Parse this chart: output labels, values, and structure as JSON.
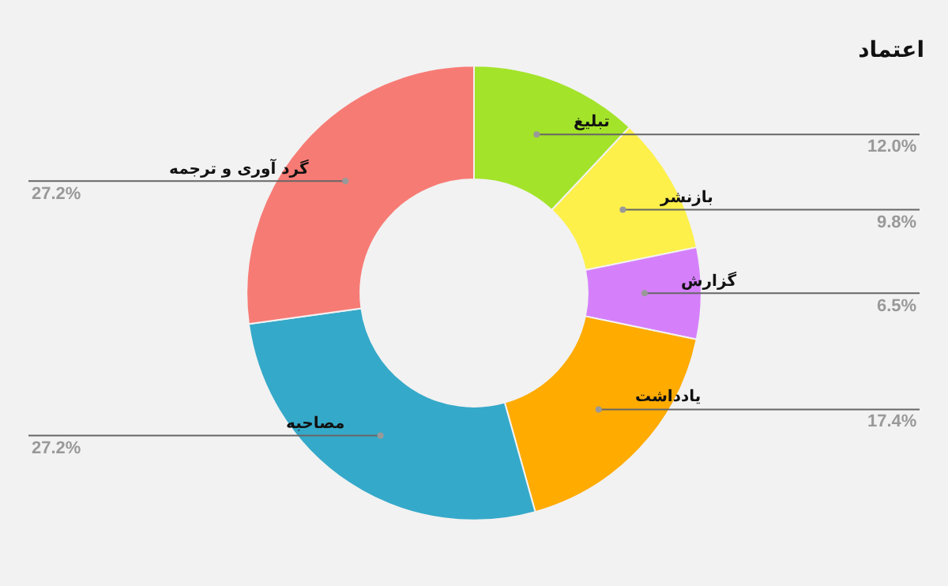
{
  "chart_data": {
    "type": "donut",
    "title": "اعتماد",
    "categories": [
      "تبلیغ",
      "بازنشر",
      "گزارش",
      "یادداشت",
      "مصاحبه",
      "گرد آوری و ترجمه"
    ],
    "values": [
      12.0,
      9.8,
      6.5,
      17.4,
      27.2,
      27.2
    ],
    "value_labels": [
      "12.0%",
      "9.8%",
      "6.5%",
      "17.4%",
      "27.2%",
      "27.2%"
    ],
    "colors": [
      "#a3e32a",
      "#fdf04a",
      "#d580fa",
      "#ffab00",
      "#35a9c9",
      "#f77b75"
    ],
    "legend": false
  }
}
